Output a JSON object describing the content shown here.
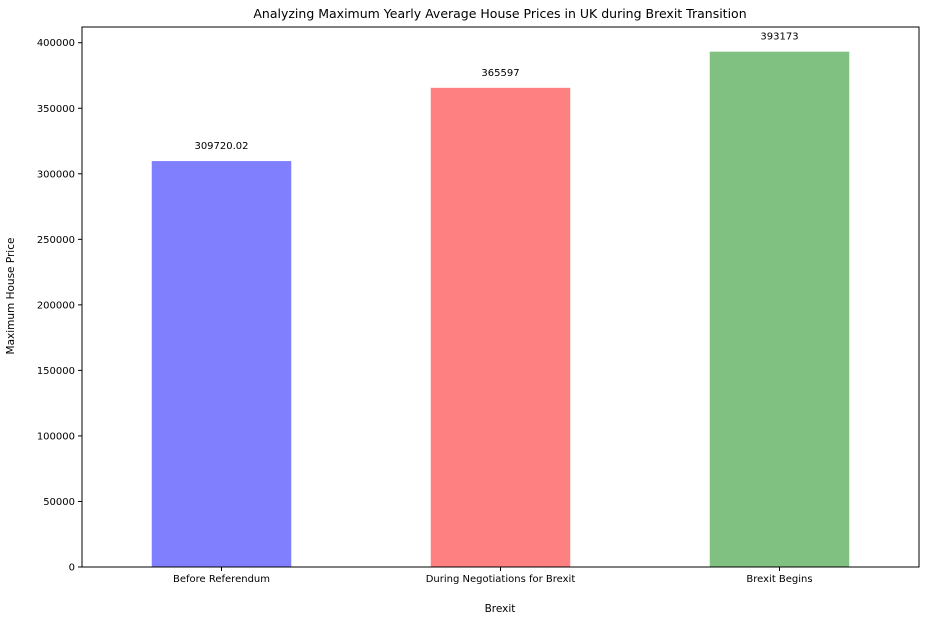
{
  "chart_data": {
    "type": "bar",
    "title": "Analyzing Maximum Yearly Average House Prices in UK during Brexit Transition",
    "xlabel": "Brexit",
    "ylabel": "Maximum House Price",
    "categories": [
      "Before Referendum",
      "During Negotiations for Brexit",
      "Brexit Begins"
    ],
    "values": [
      309720.02,
      365597,
      393173
    ],
    "data_labels": [
      "309720.02",
      "365597",
      "393173"
    ],
    "colors": [
      "#8080ff",
      "#ff8080",
      "#80c080"
    ],
    "ylim": [
      0,
      412000
    ],
    "yticks": [
      0,
      50000,
      100000,
      150000,
      200000,
      250000,
      300000,
      350000,
      400000
    ],
    "ytick_labels": [
      "0",
      "50000",
      "100000",
      "150000",
      "200000",
      "250000",
      "300000",
      "350000",
      "400000"
    ],
    "grid": false,
    "legend": "none"
  }
}
